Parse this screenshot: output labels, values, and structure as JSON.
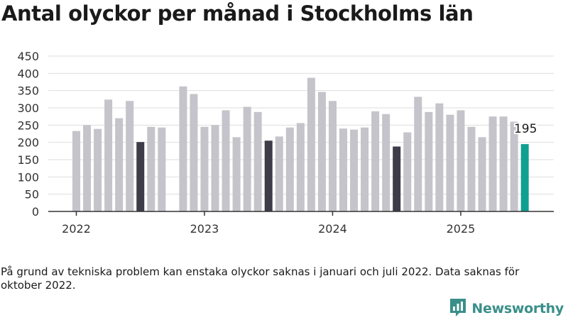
{
  "title": "Antal olyckor per månad i Stockholms län",
  "note": "På grund av tekniska problem kan enstaka olyckor saknas i januari och juli 2022. Data saknas för oktober 2022.",
  "brand": {
    "name": "Newsworthy",
    "icon": "newsworthy-logo-icon"
  },
  "colors": {
    "default": "#c4c4ca",
    "highlight": "#3d3c48",
    "latest": "#0fa091",
    "grid": "#dedede",
    "axis": "#333333"
  },
  "chart_data": {
    "type": "bar",
    "title": "Antal olyckor per månad i Stockholms län",
    "xlabel": "",
    "ylabel": "",
    "ylim": [
      0,
      450
    ],
    "yticks": [
      0,
      50,
      100,
      150,
      200,
      250,
      300,
      350,
      400,
      450
    ],
    "xticks": [
      "2022",
      "2023",
      "2024",
      "2025"
    ],
    "grid": true,
    "annotations": [
      {
        "category": "2025-07",
        "text": "195"
      }
    ],
    "categories": [
      "2022-01",
      "2022-02",
      "2022-03",
      "2022-04",
      "2022-05",
      "2022-06",
      "2022-07",
      "2022-08",
      "2022-09",
      "2022-10",
      "2022-11",
      "2022-12",
      "2023-01",
      "2023-02",
      "2023-03",
      "2023-04",
      "2023-05",
      "2023-06",
      "2023-07",
      "2023-08",
      "2023-09",
      "2023-10",
      "2023-11",
      "2023-12",
      "2024-01",
      "2024-02",
      "2024-03",
      "2024-04",
      "2024-05",
      "2024-06",
      "2024-07",
      "2024-08",
      "2024-09",
      "2024-10",
      "2024-11",
      "2024-12",
      "2025-01",
      "2025-02",
      "2025-03",
      "2025-04",
      "2025-05",
      "2025-06",
      "2025-07"
    ],
    "values": [
      233,
      250,
      239,
      324,
      270,
      320,
      201,
      245,
      243,
      null,
      362,
      340,
      245,
      250,
      293,
      215,
      303,
      288,
      205,
      217,
      243,
      256,
      387,
      346,
      320,
      240,
      237,
      243,
      290,
      282,
      188,
      229,
      332,
      288,
      313,
      280,
      293,
      245,
      215,
      275,
      275,
      260,
      195
    ],
    "highlight": [
      "2022-07",
      "2023-07",
      "2024-07"
    ],
    "latest": "2025-07"
  }
}
